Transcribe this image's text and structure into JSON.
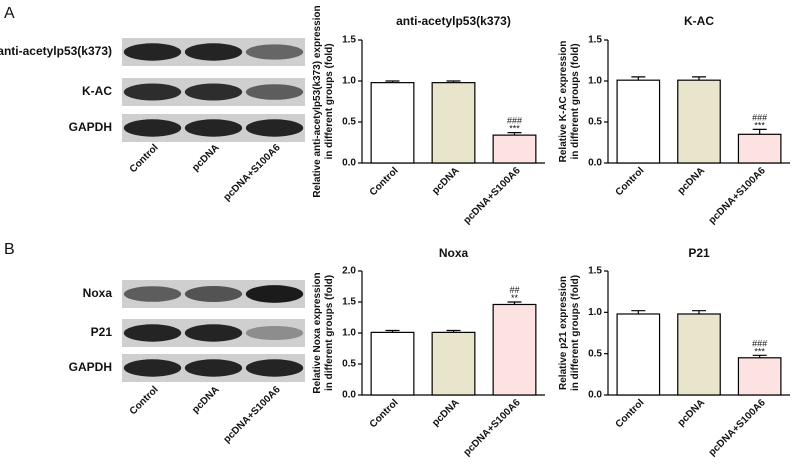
{
  "panels": [
    {
      "letter": "A",
      "blot": {
        "rows": [
          "anti-acetylp53(k373)",
          "K-AC",
          "GAPDH"
        ],
        "lanes": [
          "Control",
          "pcDNA",
          "pcDNA+S100A6"
        ]
      }
    },
    {
      "letter": "B",
      "blot": {
        "rows": [
          "Noxa",
          "P21",
          "GAPDH"
        ],
        "lanes": [
          "Control",
          "pcDNA",
          "pcDNA+S100A6"
        ]
      }
    }
  ],
  "chart_data": [
    {
      "type": "bar",
      "title": "anti-acetylp53(k373)",
      "ylabel": [
        "Relative anti-acetylp53(k373) expression",
        "in different groups (fold)"
      ],
      "categories": [
        "Control",
        "pcDNA",
        "pcDNA+S100A6"
      ],
      "values": [
        0.98,
        0.98,
        0.34
      ],
      "errors": [
        0.02,
        0.02,
        0.03
      ],
      "colors": [
        "#ffffff",
        "#e9e5cc",
        "#fde2e2"
      ],
      "ylim": [
        0,
        1.5
      ],
      "yticks": [
        {
          "value": 0,
          "label": "0.0"
        },
        0.5,
        {
          "value": 1,
          "label": "1.0"
        },
        1.5
      ],
      "annotations": [
        {
          "text": "###",
          "category": "pcDNA+S100A6"
        },
        {
          "text": "***",
          "category": "pcDNA+S100A6"
        }
      ]
    },
    {
      "type": "bar",
      "title": "K-AC",
      "ylabel": [
        "Relative K-AC expression",
        "in different groups (fold)"
      ],
      "categories": [
        "Control",
        "pcDNA",
        "pcDNA+S100A6"
      ],
      "values": [
        1.01,
        1.01,
        0.35
      ],
      "errors": [
        0.04,
        0.04,
        0.06
      ],
      "colors": [
        "#ffffff",
        "#e9e5cc",
        "#fde2e2"
      ],
      "ylim": [
        0,
        1.5
      ],
      "yticks": [
        {
          "value": 0,
          "label": "0.0"
        },
        0.5,
        {
          "value": 1,
          "label": "1.0"
        },
        1.5
      ],
      "annotations": [
        {
          "text": "###",
          "category": "pcDNA+S100A6"
        },
        {
          "text": "***",
          "category": "pcDNA+S100A6"
        }
      ]
    },
    {
      "type": "bar",
      "title": "Noxa",
      "ylabel": [
        "Relative Noxa expression",
        "in different groups (fold)"
      ],
      "categories": [
        "Control",
        "pcDNA",
        "pcDNA+S100A6"
      ],
      "values": [
        1.01,
        1.01,
        1.46
      ],
      "errors": [
        0.03,
        0.03,
        0.04
      ],
      "colors": [
        "#ffffff",
        "#e9e5cc",
        "#fde2e2"
      ],
      "ylim": [
        0,
        2
      ],
      "yticks": [
        {
          "value": 0,
          "label": "0.0"
        },
        0.5,
        {
          "value": 1,
          "label": "1.0"
        },
        1.5,
        {
          "value": 2,
          "label": "2.0"
        }
      ],
      "annotations": [
        {
          "text": "##",
          "category": "pcDNA+S100A6"
        },
        {
          "text": "**",
          "category": "pcDNA+S100A6"
        }
      ]
    },
    {
      "type": "bar",
      "title": "P21",
      "ylabel": [
        "Relative p21 expression",
        "in different groups (fold)"
      ],
      "categories": [
        "Control",
        "pcDNA",
        "pcDNA+S100A6"
      ],
      "values": [
        0.98,
        0.98,
        0.45
      ],
      "errors": [
        0.04,
        0.04,
        0.03
      ],
      "colors": [
        "#ffffff",
        "#e9e5cc",
        "#fde2e2"
      ],
      "ylim": [
        0,
        1.5
      ],
      "yticks": [
        {
          "value": 0,
          "label": "0.0"
        },
        0.5,
        {
          "value": 1,
          "label": "1.0"
        },
        1.5
      ],
      "annotations": [
        {
          "text": "###",
          "category": "pcDNA+S100A6"
        },
        {
          "text": "***",
          "category": "pcDNA+S100A6"
        }
      ]
    }
  ]
}
